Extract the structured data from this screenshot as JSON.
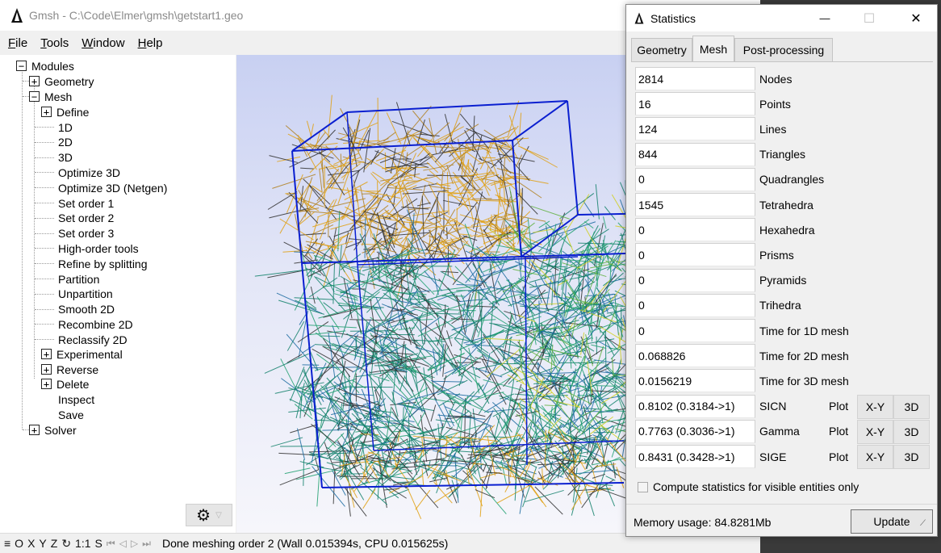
{
  "main_window": {
    "title": "Gmsh - C:\\Code\\Elmer\\gmsh\\getstart1.geo",
    "menu": [
      {
        "u": "F",
        "rest": "ile"
      },
      {
        "u": "T",
        "rest": "ools"
      },
      {
        "u": "W",
        "rest": "indow"
      },
      {
        "u": "H",
        "rest": "elp"
      }
    ]
  },
  "tree": {
    "modules": "Modules",
    "geometry": "Geometry",
    "mesh": "Mesh",
    "define": "Define",
    "mesh_items": [
      "1D",
      "2D",
      "3D",
      "Optimize 3D",
      "Optimize 3D (Netgen)",
      "Set order 1",
      "Set order 2",
      "Set order 3",
      "High-order tools",
      "Refine by splitting",
      "Partition",
      "Unpartition",
      "Smooth 2D",
      "Recombine 2D",
      "Reclassify 2D"
    ],
    "experimental": "Experimental",
    "reverse": "Reverse",
    "delete": "Delete",
    "inspect": "Inspect",
    "save": "Save",
    "solver": "Solver",
    "plus": "+",
    "minus": "−"
  },
  "icons": {
    "gear": "gear-icon",
    "gear_glyph": "⚙",
    "dropdown_glyph": "▽",
    "close_glyph": "✕",
    "minimize_glyph": "—",
    "maximize_glyph": "☐"
  },
  "status_bar": {
    "menu_glyph": "≡",
    "o": "O",
    "x": "X",
    "y": "Y",
    "z": "Z",
    "rotate_glyph": "↻",
    "scale": "1:1",
    "s": "S",
    "nav_glyphs": [
      "⏮",
      "◁",
      "▷",
      "⏭"
    ],
    "message": "Done meshing order 2 (Wall 0.015394s, CPU 0.015625s)"
  },
  "statistics": {
    "title": "Statistics",
    "tabs": [
      "Geometry",
      "Mesh",
      "Post-processing"
    ],
    "active_tab": "Mesh",
    "rows": [
      {
        "value": "2814",
        "label": "Nodes"
      },
      {
        "value": "16",
        "label": "Points"
      },
      {
        "value": "124",
        "label": "Lines"
      },
      {
        "value": "844",
        "label": "Triangles"
      },
      {
        "value": "0",
        "label": "Quadrangles"
      },
      {
        "value": "1545",
        "label": "Tetrahedra"
      },
      {
        "value": "0",
        "label": "Hexahedra"
      },
      {
        "value": "0",
        "label": "Prisms"
      },
      {
        "value": "0",
        "label": "Pyramids"
      },
      {
        "value": "0",
        "label": "Trihedra"
      },
      {
        "value": "0",
        "label": "Time for 1D mesh"
      },
      {
        "value": "0.068826",
        "label": "Time for 2D mesh"
      },
      {
        "value": "0.0156219",
        "label": "Time for 3D mesh"
      }
    ],
    "quality_rows": [
      {
        "value": "0.8102 (0.3184->1)",
        "label": "SICN"
      },
      {
        "value": "0.7763 (0.3036->1)",
        "label": "Gamma"
      },
      {
        "value": "0.8431 (0.3428->1)",
        "label": "SIGE"
      }
    ],
    "plot_label": "Plot",
    "xy_label": "X-Y",
    "d3_label": "3D",
    "visible_only": "Compute statistics for visible entities only",
    "memory": "Memory usage: 84.8281Mb",
    "update": "Update"
  },
  "colors": {
    "edge_blue": "#0a1fd0",
    "mesh_colors": [
      "#e0a010",
      "#b08020",
      "#20a070",
      "#10806a",
      "#1a6aa0",
      "#60b040",
      "#303030",
      "#d0d020"
    ]
  }
}
